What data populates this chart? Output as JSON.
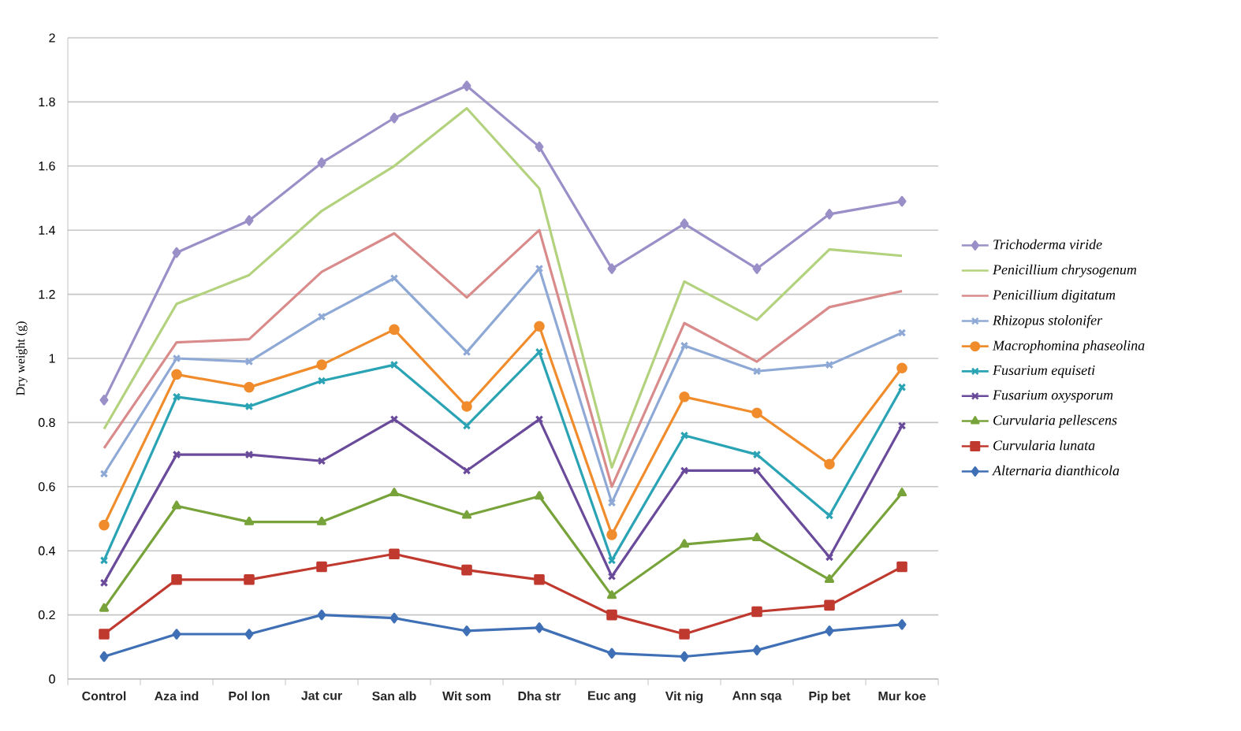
{
  "chart_data": {
    "type": "line",
    "ylabel": "Dry weight (g)",
    "categories": [
      "Control",
      "Aza ind",
      "Pol lon",
      "Jat cur",
      "San alb",
      "Wit som",
      "Dha str",
      "Euc ang",
      "Vit nig",
      "Ann sqa",
      "Pip bet",
      "Mur koe"
    ],
    "ylim": [
      0,
      2
    ],
    "yticks": [
      0,
      0.2,
      0.4,
      0.6,
      0.8,
      1,
      1.2,
      1.4,
      1.6,
      1.8,
      2
    ],
    "grid": "y",
    "legend": "right",
    "series": [
      {
        "name": "Trichoderma viride",
        "color": "#9b8fc8",
        "marker": "diamond",
        "values": [
          0.87,
          1.33,
          1.43,
          1.61,
          1.75,
          1.85,
          1.66,
          1.28,
          1.42,
          1.28,
          1.45,
          1.49
        ]
      },
      {
        "name": "Penicillium chrysogenum",
        "color": "#b3d27e",
        "marker": "none",
        "values": [
          0.78,
          1.17,
          1.26,
          1.46,
          1.6,
          1.78,
          1.53,
          0.66,
          1.24,
          1.12,
          1.34,
          1.32
        ]
      },
      {
        "name": "Penicillium digitatum",
        "color": "#d98b8b",
        "marker": "none",
        "values": [
          0.72,
          1.05,
          1.06,
          1.27,
          1.39,
          1.19,
          1.4,
          0.6,
          1.11,
          0.99,
          1.16,
          1.21
        ]
      },
      {
        "name": "Rhizopus stolonifer",
        "color": "#8fa9d6",
        "marker": "cross",
        "values": [
          0.64,
          1.0,
          0.99,
          1.13,
          1.25,
          1.02,
          1.28,
          0.55,
          1.04,
          0.96,
          0.98,
          1.08
        ]
      },
      {
        "name": "Macrophomina phaseolina",
        "color": "#f08c2c",
        "marker": "circle",
        "values": [
          0.48,
          0.95,
          0.91,
          0.98,
          1.09,
          0.85,
          1.1,
          0.45,
          0.88,
          0.83,
          0.67,
          0.97
        ]
      },
      {
        "name": "Fusarium equiseti",
        "color": "#2aa3b5",
        "marker": "cross",
        "values": [
          0.37,
          0.88,
          0.85,
          0.93,
          0.98,
          0.79,
          1.02,
          0.37,
          0.76,
          0.7,
          0.51,
          0.91
        ]
      },
      {
        "name": "Fusarium oxysporum",
        "color": "#6a4a9a",
        "marker": "cross",
        "values": [
          0.3,
          0.7,
          0.7,
          0.68,
          0.81,
          0.65,
          0.81,
          0.32,
          0.65,
          0.65,
          0.38,
          0.79
        ]
      },
      {
        "name": "Curvularia pellescens",
        "color": "#77a33a",
        "marker": "triangle",
        "values": [
          0.22,
          0.54,
          0.49,
          0.49,
          0.58,
          0.51,
          0.57,
          0.26,
          0.42,
          0.44,
          0.31,
          0.58
        ]
      },
      {
        "name": "Curvularia lunata",
        "color": "#c0392f",
        "marker": "square",
        "values": [
          0.14,
          0.31,
          0.31,
          0.35,
          0.39,
          0.34,
          0.31,
          0.2,
          0.14,
          0.21,
          0.23,
          0.35
        ]
      },
      {
        "name": "Alternaria dianthicola",
        "color": "#3f6fb5",
        "marker": "diamond",
        "values": [
          0.07,
          0.14,
          0.14,
          0.2,
          0.19,
          0.15,
          0.16,
          0.08,
          0.07,
          0.09,
          0.15,
          0.17
        ]
      }
    ]
  }
}
